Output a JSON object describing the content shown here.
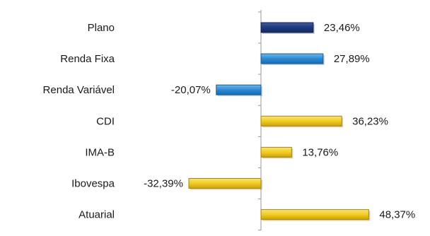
{
  "chart_data": {
    "type": "bar",
    "orientation": "horizontal",
    "categories": [
      "Plano",
      "Renda Fixa",
      "Renda Variável",
      "CDI",
      "IMA-B",
      "Ibovespa",
      "Atuarial"
    ],
    "values": [
      23.46,
      27.89,
      -20.07,
      36.23,
      13.76,
      -32.39,
      48.37
    ],
    "value_labels": [
      "23,46%",
      "27,89%",
      "-20,07%",
      "36,23%",
      "13,76%",
      "-32,39%",
      "48,37%"
    ],
    "title": "",
    "xlabel": "",
    "ylabel": "",
    "xlim": [
      -40,
      50
    ],
    "grid": false,
    "legend": "none",
    "colors": {
      "Plano": "#1f3a7a",
      "Renda Fixa": "#2a8ad4",
      "Renda Variável": "#2a8ad4",
      "CDI": "#f2cc1e",
      "IMA-B": "#f2cc1e",
      "Ibovespa": "#f2cc1e",
      "Atuarial": "#f2cc1e"
    }
  }
}
